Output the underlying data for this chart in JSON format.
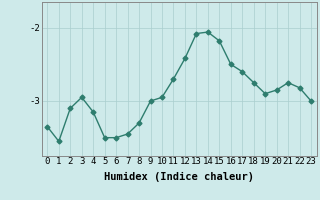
{
  "x": [
    0,
    1,
    2,
    3,
    4,
    5,
    6,
    7,
    8,
    9,
    10,
    11,
    12,
    13,
    14,
    15,
    16,
    17,
    18,
    19,
    20,
    21,
    22,
    23
  ],
  "y": [
    -3.35,
    -3.55,
    -3.1,
    -2.95,
    -3.15,
    -3.5,
    -3.5,
    -3.45,
    -3.3,
    -3.0,
    -2.95,
    -2.7,
    -2.42,
    -2.08,
    -2.06,
    -2.18,
    -2.5,
    -2.6,
    -2.75,
    -2.9,
    -2.85,
    -2.75,
    -2.82,
    -3.0
  ],
  "line_color": "#2e7d6e",
  "marker": "D",
  "marker_size": 2.5,
  "bg_color": "#ceeaea",
  "grid_color": "#aacece",
  "xlabel": "Humidex (Indice chaleur)",
  "xlabel_fontsize": 7.5,
  "tick_fontsize": 6.5,
  "yticks": [
    -3,
    -2
  ],
  "ylim": [
    -3.75,
    -1.65
  ],
  "xlim": [
    -0.5,
    23.5
  ],
  "line_width": 1.0
}
